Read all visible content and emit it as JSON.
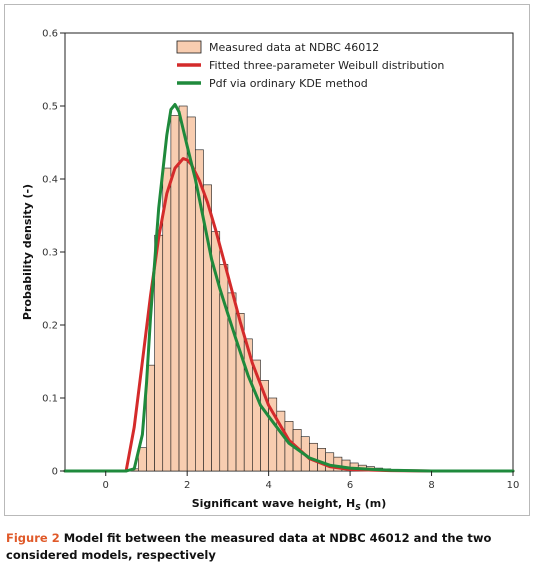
{
  "chart_data": {
    "type": "bar",
    "title": "",
    "xlabel": "Significant wave height, H",
    "xlabel_sub": "S",
    "xlabel_unit": " (m)",
    "ylabel": "Probability density (-)",
    "xlim": [
      -1,
      10
    ],
    "ylim": [
      0,
      0.6
    ],
    "xticks": [
      0,
      2,
      4,
      6,
      8,
      10
    ],
    "yticks": [
      "0",
      "0.1",
      "0.2",
      "0.3",
      "0.4",
      "0.5",
      "0.6"
    ],
    "legend_position": "top-center",
    "histogram": {
      "name": "Measured data at NDBC 46012",
      "bin_width": 0.2,
      "x_start": 0.6,
      "fill": "#f8cdb0",
      "edge": "#1a1a1a",
      "values": [
        0.003,
        0.032,
        0.145,
        0.323,
        0.415,
        0.487,
        0.5,
        0.485,
        0.44,
        0.392,
        0.328,
        0.283,
        0.244,
        0.216,
        0.181,
        0.152,
        0.124,
        0.1,
        0.082,
        0.068,
        0.057,
        0.047,
        0.038,
        0.031,
        0.025,
        0.019,
        0.015,
        0.011,
        0.008,
        0.006,
        0.004,
        0.003,
        0.002,
        0.001
      ]
    },
    "series": [
      {
        "name": "Fitted three-parameter Weibull distribution",
        "color": "#d42b2b",
        "x": [
          -1,
          0.5,
          0.7,
          0.9,
          1.1,
          1.3,
          1.5,
          1.7,
          1.9,
          2.0,
          2.1,
          2.3,
          2.5,
          2.7,
          3.0,
          3.3,
          3.6,
          4.0,
          4.5,
          5.0,
          5.5,
          6.0,
          7.0,
          8.0,
          10
        ],
        "y": [
          0,
          0,
          0.06,
          0.15,
          0.24,
          0.32,
          0.38,
          0.415,
          0.428,
          0.426,
          0.42,
          0.398,
          0.368,
          0.33,
          0.268,
          0.205,
          0.148,
          0.09,
          0.042,
          0.017,
          0.006,
          0.002,
          0.0005,
          0,
          0
        ]
      },
      {
        "name": "Pdf via ordinary KDE method",
        "color": "#1f8a3c",
        "x": [
          -1,
          0.5,
          0.7,
          0.9,
          1.0,
          1.1,
          1.3,
          1.5,
          1.6,
          1.7,
          1.8,
          2.0,
          2.2,
          2.4,
          2.6,
          2.8,
          3.0,
          3.2,
          3.5,
          3.8,
          4.0,
          4.5,
          5.0,
          5.5,
          6.0,
          7.0,
          8.0,
          10
        ],
        "y": [
          0,
          0,
          0.003,
          0.05,
          0.12,
          0.21,
          0.36,
          0.46,
          0.495,
          0.502,
          0.492,
          0.445,
          0.4,
          0.345,
          0.29,
          0.25,
          0.215,
          0.18,
          0.13,
          0.09,
          0.075,
          0.038,
          0.018,
          0.008,
          0.004,
          0.001,
          0,
          0
        ]
      }
    ]
  },
  "caption": {
    "label": "Figure 2",
    "text": " Model fit between the measured data at NDBC 46012 and the two considered models, respectively"
  }
}
